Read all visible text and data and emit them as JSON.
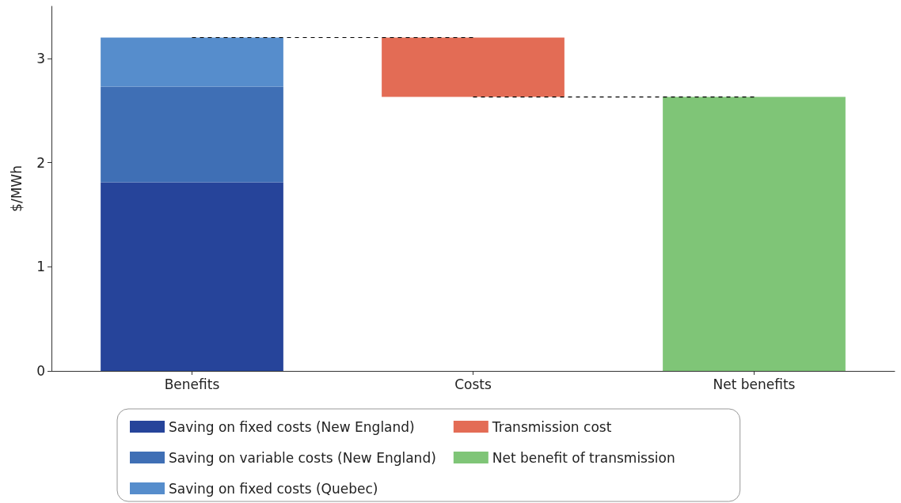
{
  "chart_data": {
    "type": "bar",
    "ylabel": "$/MWh",
    "categories": [
      "Benefits",
      "Costs",
      "Net benefits"
    ],
    "stacked": true,
    "ylim": [
      0,
      3.5
    ],
    "yticks": [
      0,
      1,
      2,
      3
    ],
    "grid": false,
    "legend": "bottom",
    "series": [
      {
        "name": "Saving on fixed costs (New England)",
        "color": "#26449a",
        "values": [
          1.81,
          null,
          null
        ]
      },
      {
        "name": "Saving on variable costs (New England)",
        "color": "#3f6fb5",
        "values": [
          0.92,
          null,
          null
        ]
      },
      {
        "name": "Saving on fixed costs (Quebec)",
        "color": "#568dcc",
        "values": [
          0.47,
          null,
          null
        ]
      },
      {
        "name": "Transmission cost",
        "color": "#e36c55",
        "values": [
          null,
          0.57,
          null
        ],
        "base": [
          null,
          2.63,
          null
        ]
      },
      {
        "name": "Net benefit of transmission",
        "color": "#7fc577",
        "values": [
          null,
          null,
          2.63
        ]
      },
      {
        "type": "line",
        "line_style": "dashed",
        "marker": "none",
        "color": "#000000",
        "values": [
          3.2,
          3.2,
          null
        ]
      },
      {
        "type": "line",
        "line_style": "dashed",
        "marker": "none",
        "color": "#000000",
        "values": [
          null,
          2.63,
          2.63
        ]
      }
    ]
  }
}
